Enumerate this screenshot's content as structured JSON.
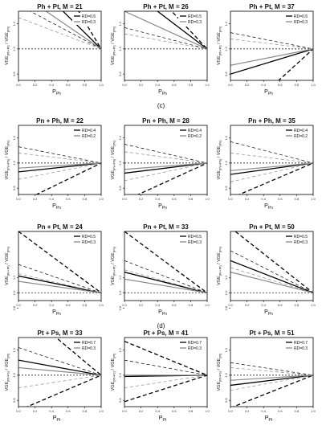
{
  "sections": [
    {
      "label": "(c)",
      "after_row": 0
    },
    {
      "label": "(d)",
      "after_row": 2
    }
  ],
  "colors": {
    "black": "#000000",
    "gray": "#8a8a8a",
    "reference": "#000000"
  },
  "chart_data": [
    {
      "type": "line",
      "title": "Ph + Pt, M = 21",
      "xlabel_main": "P",
      "xlabel_sub": "Ph",
      "ylabel_main": "VGE",
      "ylabel_sub1": "(Ph+Pt)",
      "ylabel_sep": " / VGE",
      "ylabel_sub2": "(Ph)",
      "x_ticks": [
        "0.0",
        "0.2",
        "0.4",
        "0.6",
        "0.8",
        "1.0"
      ],
      "y_ticks": [
        "0.8",
        "1.0",
        "1.2"
      ],
      "xlim": [
        0,
        1
      ],
      "ylim": [
        0.75,
        1.3
      ],
      "legend": [
        "RD=0.5",
        "RD=0.3"
      ],
      "series": [
        {
          "color": "black",
          "width": 1.3,
          "dash": "",
          "start": 1.65
        },
        {
          "color": "black",
          "width": 1.3,
          "dash": "5,3",
          "start": 2.1
        },
        {
          "color": "black",
          "width": 0.7,
          "dash": "4,3",
          "start": 1.35
        },
        {
          "color": "gray",
          "width": 1.2,
          "dash": "",
          "start": 1.45
        },
        {
          "color": "gray",
          "width": 0.7,
          "dash": "4,3",
          "start": 1.25
        }
      ]
    },
    {
      "type": "line",
      "title": "Ph + Pt, M = 26",
      "xlabel_main": "P",
      "xlabel_sub": "Ph",
      "ylabel_main": "VGE",
      "ylabel_sub1": "(Ph+Pt)",
      "ylabel_sep": " / VGE",
      "ylabel_sub2": "(Ph)",
      "x_ticks": [
        "0.0",
        "0.2",
        "0.4",
        "0.6",
        "0.8",
        "1.0"
      ],
      "y_ticks": [
        "0.8",
        "1.0",
        "1.2"
      ],
      "xlim": [
        0,
        1
      ],
      "ylim": [
        0.75,
        1.3
      ],
      "legend": [
        "RD=0.5",
        "RD=0.3"
      ],
      "series": [
        {
          "color": "black",
          "width": 1.3,
          "dash": "",
          "start": 1.5
        },
        {
          "color": "black",
          "width": 1.3,
          "dash": "5,3",
          "start": 1.7
        },
        {
          "color": "black",
          "width": 0.7,
          "dash": "4,3",
          "start": 1.17
        },
        {
          "color": "gray",
          "width": 1.2,
          "dash": "",
          "start": 1.3
        },
        {
          "color": "gray",
          "width": 0.7,
          "dash": "4,3",
          "start": 1.12
        }
      ]
    },
    {
      "type": "line",
      "title": "Ph + Pt, M = 37",
      "xlabel_main": "P",
      "xlabel_sub": "Ph",
      "ylabel_main": "VGE",
      "ylabel_sub1": "(Ph+Pt)",
      "ylabel_sep": " / VGE",
      "ylabel_sub2": "(Ph)",
      "x_ticks": [
        "0.0",
        "0.2",
        "0.4",
        "0.6",
        "0.8",
        "1.0"
      ],
      "y_ticks": [
        "0.8",
        "1.0",
        "1.2"
      ],
      "xlim": [
        0,
        1
      ],
      "ylim": [
        0.75,
        1.3
      ],
      "legend": [
        "RD=0.5",
        "RD=0.3"
      ],
      "series": [
        {
          "color": "black",
          "width": 1.3,
          "dash": "",
          "start": 0.8
        },
        {
          "color": "black",
          "width": 1.3,
          "dash": "5,3",
          "start": 0.4
        },
        {
          "color": "black",
          "width": 0.7,
          "dash": "4,3",
          "start": 1.13
        },
        {
          "color": "gray",
          "width": 1.2,
          "dash": "",
          "start": 0.87
        },
        {
          "color": "gray",
          "width": 0.7,
          "dash": "4,3",
          "start": 1.08
        }
      ]
    },
    {
      "type": "line",
      "title": "Pn + Ph, M = 22",
      "xlabel_main": "P",
      "xlabel_sub": "Pn",
      "ylabel_main": "VGE",
      "ylabel_sub1": "(Pn+Ph)",
      "ylabel_sep": " / VGE",
      "ylabel_sub2": "(Pn)",
      "x_ticks": [
        "0.0",
        "0.2",
        "0.4",
        "0.6",
        "0.8",
        "1.0"
      ],
      "y_ticks": [
        "0.8",
        "1.0",
        "1.2"
      ],
      "xlim": [
        0,
        1
      ],
      "ylim": [
        0.75,
        1.3
      ],
      "legend": [
        "RD=0.4",
        "RD=0.2"
      ],
      "series": [
        {
          "color": "black",
          "width": 1.3,
          "dash": "",
          "start": 0.93
        },
        {
          "color": "black",
          "width": 1.3,
          "dash": "5,3",
          "start": 0.68
        },
        {
          "color": "black",
          "width": 0.7,
          "dash": "4,3",
          "start": 1.13
        },
        {
          "color": "gray",
          "width": 1.2,
          "dash": "",
          "start": 0.96
        },
        {
          "color": "gray",
          "width": 0.7,
          "dash": "4,3",
          "start": 1.08
        },
        {
          "color": "gray",
          "width": 0.7,
          "dash": "4,3",
          "start": 0.87
        }
      ]
    },
    {
      "type": "line",
      "title": "Pn + Ph, M = 28",
      "xlabel_main": "P",
      "xlabel_sub": "Pn",
      "ylabel_main": "VGE",
      "ylabel_sub1": "(Pn+Ph)",
      "ylabel_sep": " / VGE",
      "ylabel_sub2": "(Pn)",
      "x_ticks": [
        "0.0",
        "0.2",
        "0.4",
        "0.6",
        "0.8",
        "1.0"
      ],
      "y_ticks": [
        "0.8",
        "1.0",
        "1.2"
      ],
      "xlim": [
        0,
        1
      ],
      "ylim": [
        0.75,
        1.3
      ],
      "legend": [
        "RD=0.4",
        "RD=0.2"
      ],
      "series": [
        {
          "color": "black",
          "width": 1.3,
          "dash": "",
          "start": 0.92
        },
        {
          "color": "black",
          "width": 1.3,
          "dash": "5,3",
          "start": 0.7
        },
        {
          "color": "black",
          "width": 0.7,
          "dash": "4,3",
          "start": 1.15
        },
        {
          "color": "gray",
          "width": 1.2,
          "dash": "",
          "start": 0.95
        },
        {
          "color": "gray",
          "width": 0.7,
          "dash": "4,3",
          "start": 1.09
        },
        {
          "color": "gray",
          "width": 0.7,
          "dash": "4,3",
          "start": 0.86
        }
      ]
    },
    {
      "type": "line",
      "title": "Pn + Ph, M = 35",
      "xlabel_main": "P",
      "xlabel_sub": "Pn",
      "ylabel_main": "VGE",
      "ylabel_sub1": "(Pn+Ph)",
      "ylabel_sep": " / VGE",
      "ylabel_sub2": "(Pn)",
      "x_ticks": [
        "0.0",
        "0.2",
        "0.4",
        "0.6",
        "0.8",
        "1.0"
      ],
      "y_ticks": [
        "0.8",
        "1.0",
        "1.2"
      ],
      "xlim": [
        0,
        1
      ],
      "ylim": [
        0.75,
        1.3
      ],
      "legend": [
        "RD=0.4",
        "RD=0.2"
      ],
      "series": [
        {
          "color": "black",
          "width": 1.3,
          "dash": "",
          "start": 0.91
        },
        {
          "color": "black",
          "width": 1.3,
          "dash": "5,3",
          "start": 0.72
        },
        {
          "color": "black",
          "width": 0.7,
          "dash": "4,3",
          "start": 1.17
        },
        {
          "color": "gray",
          "width": 1.2,
          "dash": "",
          "start": 0.94
        },
        {
          "color": "gray",
          "width": 0.7,
          "dash": "4,3",
          "start": 1.08
        },
        {
          "color": "gray",
          "width": 0.7,
          "dash": "4,3",
          "start": 0.85
        }
      ]
    },
    {
      "type": "line",
      "title": "Pn + Pt, M = 24",
      "xlabel_main": "P",
      "xlabel_sub": "Pn",
      "ylabel_main": "VGE",
      "ylabel_sub1": "(Pn+Pt)",
      "ylabel_sep": " / VGE",
      "ylabel_sub2": "(Pn)",
      "x_ticks": [
        "0.0",
        "0.2",
        "0.4",
        "0.6",
        "0.8",
        "1.0"
      ],
      "y_ticks": [
        "0.8",
        "1.0",
        "1.2"
      ],
      "xlim": [
        0,
        1
      ],
      "ylim": [
        0.9,
        1.8
      ],
      "legend": [
        "RD=0.5",
        "RD=0.3"
      ],
      "series": [
        {
          "color": "black",
          "width": 1.3,
          "dash": "",
          "start": 1.22
        },
        {
          "color": "black",
          "width": 1.3,
          "dash": "5,3",
          "start": 1.8
        },
        {
          "color": "black",
          "width": 0.7,
          "dash": "4,3",
          "start": 1.37
        },
        {
          "color": "gray",
          "width": 1.2,
          "dash": "",
          "start": 1.15
        },
        {
          "color": "gray",
          "width": 0.7,
          "dash": "4,3",
          "start": 1.25
        }
      ]
    },
    {
      "type": "line",
      "title": "Pn + Pt, M = 33",
      "xlabel_main": "P",
      "xlabel_sub": "Pn",
      "ylabel_main": "VGE",
      "ylabel_sub1": "(Pn+Pt)",
      "ylabel_sep": " / VGE",
      "ylabel_sub2": "(Pn)",
      "x_ticks": [
        "0.0",
        "0.2",
        "0.4",
        "0.6",
        "0.8",
        "1.0"
      ],
      "y_ticks": [
        "0.8",
        "1.0",
        "1.2"
      ],
      "xlim": [
        0,
        1
      ],
      "ylim": [
        0.9,
        1.8
      ],
      "legend": [
        "RD=0.5",
        "RD=0.3"
      ],
      "series": [
        {
          "color": "black",
          "width": 1.3,
          "dash": "",
          "start": 1.27
        },
        {
          "color": "black",
          "width": 1.3,
          "dash": "5,3",
          "start": 1.8
        },
        {
          "color": "black",
          "width": 0.7,
          "dash": "4,3",
          "start": 1.42
        },
        {
          "color": "gray",
          "width": 1.2,
          "dash": "",
          "start": 1.18
        },
        {
          "color": "gray",
          "width": 0.7,
          "dash": "4,3",
          "start": 1.3
        }
      ]
    },
    {
      "type": "line",
      "title": "Pn + Pt, M = 50",
      "xlabel_main": "P",
      "xlabel_sub": "Pn",
      "ylabel_main": "VGE",
      "ylabel_sub1": "(Pn+Pt)",
      "ylabel_sep": " / VGE",
      "ylabel_sub2": "(Pn)",
      "x_ticks": [
        "0.0",
        "0.2",
        "0.4",
        "0.6",
        "0.8",
        "1.0"
      ],
      "y_ticks": [
        "0.8",
        "1.0",
        "1.2"
      ],
      "xlim": [
        0,
        1
      ],
      "ylim": [
        0.9,
        1.8
      ],
      "legend": [
        "RD=0.5",
        "RD=0.3"
      ],
      "series": [
        {
          "color": "black",
          "width": 1.3,
          "dash": "",
          "start": 1.42
        },
        {
          "color": "black",
          "width": 1.3,
          "dash": "5,3",
          "start": 1.85
        },
        {
          "color": "black",
          "width": 0.7,
          "dash": "4,3",
          "start": 1.55
        },
        {
          "color": "gray",
          "width": 1.2,
          "dash": "",
          "start": 1.27
        },
        {
          "color": "gray",
          "width": 0.7,
          "dash": "4,3",
          "start": 1.33
        }
      ]
    },
    {
      "type": "line",
      "title": "Pt + Ps, M = 33",
      "xlabel_main": "P",
      "xlabel_sub": "Pt",
      "ylabel_main": "VGE",
      "ylabel_sub1": "(Pt+Ps)",
      "ylabel_sep": " / VGE",
      "ylabel_sub2": "(Pt)",
      "x_ticks": [
        "0.0",
        "0.2",
        "0.4",
        "0.6",
        "0.8",
        "1.0"
      ],
      "y_ticks": [
        "0.8",
        "1.0",
        "1.2"
      ],
      "xlim": [
        0,
        1
      ],
      "ylim": [
        0.75,
        1.3
      ],
      "legend": [
        "RD=0.7",
        "RD=0.3"
      ],
      "series": [
        {
          "color": "black",
          "width": 1.3,
          "dash": "",
          "start": 1.12
        },
        {
          "color": "black",
          "width": 1.3,
          "dash": "5,3",
          "start": 1.55
        },
        {
          "color": "black",
          "width": 0.7,
          "dash": "4,3",
          "start": 1.22
        },
        {
          "color": "gray",
          "width": 1.2,
          "dash": "",
          "start": 1.06
        },
        {
          "color": "gray",
          "width": 0.7,
          "dash": "4,3",
          "start": 0.9
        },
        {
          "color": "black",
          "width": 1.3,
          "dash": "5,3",
          "start": 0.72
        }
      ]
    },
    {
      "type": "line",
      "title": "Pt + Ps, M = 41",
      "xlabel_main": "P",
      "xlabel_sub": "Pt",
      "ylabel_main": "VGE",
      "ylabel_sub1": "(Pt+Ps)",
      "ylabel_sep": " / VGE",
      "ylabel_sub2": "(Pt)",
      "x_ticks": [
        "0.0",
        "0.2",
        "0.4",
        "0.6",
        "0.8",
        "1.0"
      ],
      "y_ticks": [
        "0.8",
        "1.0",
        "1.2"
      ],
      "xlim": [
        0,
        1
      ],
      "ylim": [
        0.75,
        1.3
      ],
      "legend": [
        "RD=0.7",
        "RD=0.3"
      ],
      "series": [
        {
          "color": "black",
          "width": 1.3,
          "dash": "",
          "start": 0.99
        },
        {
          "color": "black",
          "width": 1.3,
          "dash": "5,3",
          "start": 1.27
        },
        {
          "color": "black",
          "width": 0.7,
          "dash": "4,3",
          "start": 1.12
        },
        {
          "color": "gray",
          "width": 1.2,
          "dash": "",
          "start": 1.0
        },
        {
          "color": "gray",
          "width": 0.7,
          "dash": "4,3",
          "start": 0.9
        },
        {
          "color": "black",
          "width": 1.3,
          "dash": "5,3",
          "start": 0.79
        }
      ]
    },
    {
      "type": "line",
      "title": "Pt + Ps, M = 51",
      "xlabel_main": "P",
      "xlabel_sub": "Pt",
      "ylabel_main": "VGE",
      "ylabel_sub1": "(Pt+Ps)",
      "ylabel_sep": " / VGE",
      "ylabel_sub2": "(Pt)",
      "x_ticks": [
        "0.0",
        "0.2",
        "0.4",
        "0.6",
        "0.8",
        "1.0"
      ],
      "y_ticks": [
        "0.8",
        "1.0",
        "1.2"
      ],
      "xlim": [
        0,
        1
      ],
      "ylim": [
        0.75,
        1.3
      ],
      "legend": [
        "RD=0.7",
        "RD=0.3"
      ],
      "series": [
        {
          "color": "black",
          "width": 1.3,
          "dash": "",
          "start": 0.92
        },
        {
          "color": "black",
          "width": 1.3,
          "dash": "5,3",
          "start": 0.74
        },
        {
          "color": "black",
          "width": 0.7,
          "dash": "4,3",
          "start": 1.1
        },
        {
          "color": "gray",
          "width": 1.2,
          "dash": "",
          "start": 0.96
        },
        {
          "color": "gray",
          "width": 0.7,
          "dash": "4,3",
          "start": 1.06
        },
        {
          "color": "gray",
          "width": 0.7,
          "dash": "4,3",
          "start": 0.88
        }
      ]
    }
  ]
}
